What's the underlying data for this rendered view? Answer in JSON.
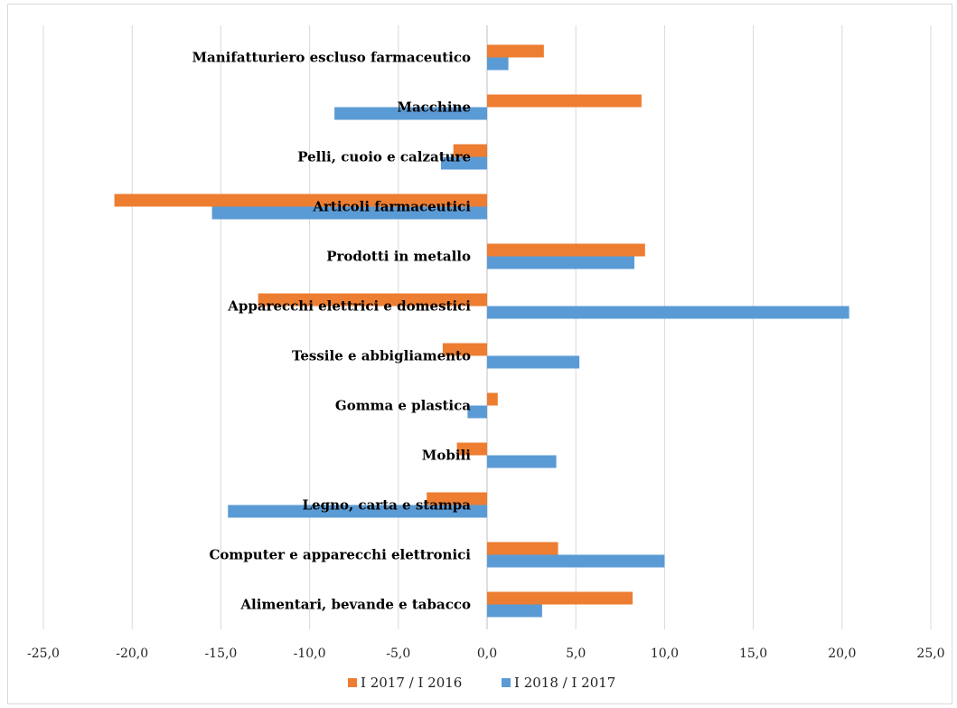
{
  "chart_data": {
    "type": "bar",
    "orientation": "horizontal",
    "categories": [
      "Alimentari, bevande e tabacco",
      "Computer e apparecchi elettronici",
      "Legno, carta e stampa",
      "Mobili",
      "Gomma e plastica",
      "Tessile e abbigliamento",
      "Apparecchi elettrici e domestici",
      "Prodotti in metallo",
      "Articoli farmaceutici",
      "Pelli, cuoio e calzature",
      "Macchine",
      "Manifatturiero escluso farmaceutico"
    ],
    "series": [
      {
        "name": "I 2017 / I 2016",
        "color": "#ED7D31",
        "values": [
          8.2,
          4.0,
          -3.4,
          -1.7,
          0.6,
          -2.5,
          -12.9,
          8.9,
          -21.0,
          -1.9,
          8.7,
          3.2
        ]
      },
      {
        "name": "I 2018 / I 2017",
        "color": "#5B9BD5",
        "values": [
          3.1,
          10.0,
          -14.6,
          3.9,
          -1.1,
          5.2,
          20.4,
          8.3,
          -15.5,
          -2.6,
          -8.6,
          1.2
        ]
      }
    ],
    "xlim": [
      -25,
      25
    ],
    "xticks": [
      "-25,0",
      "-20,0",
      "-15,0",
      "-10,0",
      "-5,0",
      "0,0",
      "5,0",
      "10,0",
      "15,0",
      "20,0",
      "25,0"
    ],
    "title": "",
    "xlabel": "",
    "ylabel": "",
    "grid": true,
    "legend_position": "bottom"
  }
}
